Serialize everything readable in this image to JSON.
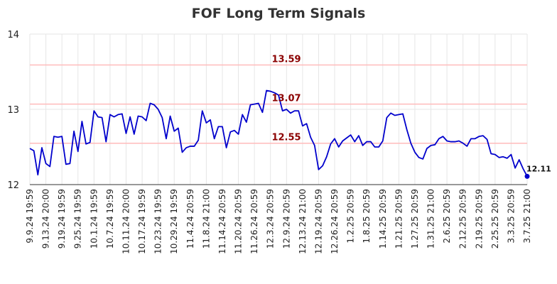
{
  "chart_data": {
    "type": "line",
    "title": "FOF Long Term Signals",
    "xlabel": "",
    "ylabel": "",
    "ylim": [
      12,
      14
    ],
    "yticks": [
      "12",
      "13",
      "14"
    ],
    "xticks": [
      "9.9.24 19:59",
      "9.13.24 20:00",
      "9.19.24 19:59",
      "9.25.24 19:59",
      "10.1.24 19:59",
      "10.7.24 19:59",
      "10.11.24 20:00",
      "10.17.24 19:59",
      "10.23.24 19:59",
      "10.29.24 19:59",
      "11.4.24 20:59",
      "11.8.24 21:00",
      "11.14.24 20:59",
      "11.20.24 20:59",
      "11.26.24 20:59",
      "12.3.24 20:59",
      "12.9.24 20:59",
      "12.13.24 21:00",
      "12.19.24 20:59",
      "12.26.24 20:59",
      "1.2.25 20:59",
      "1.8.25 20:59",
      "1.14.25 20:59",
      "1.21.25 20:59",
      "1.27.25 20:59",
      "1.31.25 21:00",
      "2.6.25 20:59",
      "2.12.25 20:59",
      "2.19.25 20:59",
      "2.25.25 20:59",
      "3.3.25 20:59",
      "3.7.25 21:00"
    ],
    "grid": true,
    "line_color": "#0000cc",
    "horizontal_lines": [
      {
        "value": 13.59,
        "label": "13.59",
        "line_color": "#ffbbbb",
        "label_color": "#8b0000"
      },
      {
        "value": 13.07,
        "label": "13.07",
        "line_color": "#ffbbbb",
        "label_color": "#8b0000"
      },
      {
        "value": 12.55,
        "label": "12.55",
        "line_color": "#ffbbbb",
        "label_color": "#8b0000"
      }
    ],
    "last_value_label": "12.11",
    "series": [
      {
        "values": [
          12.48,
          12.45,
          12.13,
          12.49,
          12.28,
          12.24,
          12.64,
          12.63,
          12.64,
          12.27,
          12.28,
          12.71,
          12.44,
          12.84,
          12.54,
          12.56,
          12.98,
          12.9,
          12.89,
          12.57,
          12.93,
          12.9,
          12.93,
          12.94,
          12.68,
          12.9,
          12.67,
          12.91,
          12.9,
          12.85,
          13.08,
          13.06,
          13.0,
          12.89,
          12.61,
          12.91,
          12.71,
          12.75,
          12.43,
          12.49,
          12.51,
          12.51,
          12.59,
          12.98,
          12.82,
          12.86,
          12.61,
          12.77,
          12.77,
          12.49,
          12.7,
          12.72,
          12.67,
          12.93,
          12.83,
          13.06,
          13.07,
          13.08,
          12.96,
          13.25,
          13.24,
          13.22,
          13.19,
          12.98,
          13.0,
          12.95,
          12.98,
          12.98,
          12.78,
          12.81,
          12.63,
          12.52,
          12.2,
          12.25,
          12.37,
          12.54,
          12.61,
          12.5,
          12.58,
          12.62,
          12.66,
          12.57,
          12.65,
          12.52,
          12.57,
          12.57,
          12.5,
          12.5,
          12.58,
          12.89,
          12.95,
          12.92,
          12.93,
          12.94,
          12.73,
          12.55,
          12.43,
          12.36,
          12.34,
          12.48,
          12.52,
          12.53,
          12.61,
          12.64,
          12.58,
          12.57,
          12.57,
          12.58,
          12.55,
          12.51,
          12.61,
          12.61,
          12.64,
          12.65,
          12.6,
          12.41,
          12.4,
          12.36,
          12.37,
          12.35,
          12.4,
          12.22,
          12.33,
          12.21,
          12.11
        ]
      }
    ]
  }
}
